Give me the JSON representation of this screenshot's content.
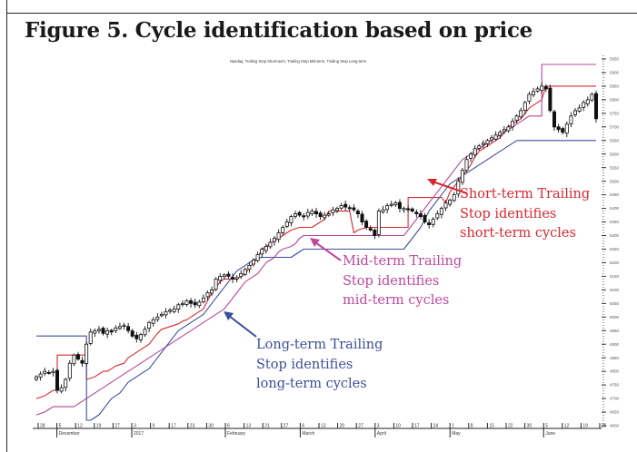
{
  "figure_title": "Figure 5. Cycle identification based on price",
  "chart_data": {
    "type": "line",
    "title": "Nasdaq, Trailing Stop Short-term, Trailing Stop Mid-term, Trailing Stop Long-term",
    "xlabel": "",
    "ylabel": "",
    "ylim": [
      4600,
      5950
    ],
    "yticks": [
      5950,
      5900,
      5850,
      5800,
      5750,
      5700,
      5650,
      5600,
      5550,
      5500,
      5450,
      5400,
      5350,
      5300,
      5250,
      5200,
      5150,
      5100,
      5050,
      5000,
      4950,
      4900,
      4850,
      4800,
      4750,
      4700,
      4650,
      4600
    ],
    "grid": false,
    "legend": "none",
    "x_ticks": [
      {
        "label": "28",
        "month": ""
      },
      {
        "label": "5",
        "month": "December"
      },
      {
        "label": "12",
        "month": ""
      },
      {
        "label": "19",
        "month": ""
      },
      {
        "label": "27",
        "month": ""
      },
      {
        "label": "3",
        "month": "2017"
      },
      {
        "label": "9",
        "month": ""
      },
      {
        "label": "17",
        "month": ""
      },
      {
        "label": "23",
        "month": ""
      },
      {
        "label": "30",
        "month": ""
      },
      {
        "label": "6",
        "month": "February"
      },
      {
        "label": "13",
        "month": ""
      },
      {
        "label": "21",
        "month": ""
      },
      {
        "label": "27",
        "month": ""
      },
      {
        "label": "6",
        "month": "March"
      },
      {
        "label": "13",
        "month": ""
      },
      {
        "label": "20",
        "month": ""
      },
      {
        "label": "27",
        "month": ""
      },
      {
        "label": "3",
        "month": "April"
      },
      {
        "label": "10",
        "month": ""
      },
      {
        "label": "17",
        "month": ""
      },
      {
        "label": "24",
        "month": ""
      },
      {
        "label": "1",
        "month": "May"
      },
      {
        "label": "8",
        "month": ""
      },
      {
        "label": "15",
        "month": ""
      },
      {
        "label": "22",
        "month": ""
      },
      {
        "label": "30",
        "month": ""
      },
      {
        "label": "5",
        "month": "June"
      },
      {
        "label": "12",
        "month": ""
      },
      {
        "label": "19",
        "month": ""
      },
      {
        "label": "26",
        "month": ""
      }
    ],
    "close_series": [
      4780,
      4790,
      4800,
      4795,
      4800,
      4730,
      4740,
      4770,
      4830,
      4860,
      4845,
      4830,
      4900,
      4945,
      4950,
      4955,
      4940,
      4950,
      4945,
      4960,
      4965,
      4970,
      4950,
      4930,
      4920,
      4935,
      4955,
      4980,
      4990,
      5000,
      5010,
      5020,
      5025,
      5030,
      5045,
      5050,
      5060,
      5050,
      5045,
      5055,
      5070,
      5090,
      5100,
      5140,
      5150,
      5155,
      5150,
      5140,
      5145,
      5160,
      5175,
      5190,
      5210,
      5230,
      5250,
      5260,
      5275,
      5290,
      5310,
      5330,
      5350,
      5370,
      5380,
      5375,
      5370,
      5385,
      5390,
      5380,
      5370,
      5375,
      5380,
      5395,
      5400,
      5410,
      5405,
      5400,
      5395,
      5380,
      5350,
      5330,
      5320,
      5300,
      5390,
      5395,
      5410,
      5415,
      5420,
      5400,
      5400,
      5395,
      5390,
      5380,
      5370,
      5350,
      5340,
      5360,
      5380,
      5400,
      5420,
      5430,
      5450,
      5500,
      5540,
      5580,
      5600,
      5620,
      5630,
      5640,
      5650,
      5660,
      5670,
      5680,
      5690,
      5700,
      5720,
      5740,
      5760,
      5790,
      5820,
      5830,
      5840,
      5850,
      5840,
      5760,
      5700,
      5690,
      5680,
      5710,
      5740,
      5760,
      5770,
      5790,
      5800,
      5820,
      5730
    ],
    "series": [
      {
        "name": "Trailing Stop Short-term",
        "color": "#d9282f",
        "values": [
          4700,
          4705,
          4710,
          4720,
          4730,
          4860,
          4860,
          4860,
          4860,
          4860,
          4860,
          4860,
          4770,
          4775,
          4780,
          4790,
          4800,
          4800,
          4810,
          4820,
          4825,
          4830,
          4850,
          4860,
          4870,
          4880,
          4890,
          4900,
          4920,
          4940,
          4955,
          4960,
          4965,
          4970,
          4975,
          4985,
          4990,
          5000,
          5010,
          5020,
          5030,
          5060,
          5090,
          5110,
          5130,
          5140,
          5140,
          5140,
          5140,
          5150,
          5160,
          5180,
          5200,
          5220,
          5250,
          5260,
          5270,
          5280,
          5290,
          5300,
          5310,
          5320,
          5325,
          5330,
          5330,
          5330,
          5330,
          5340,
          5350,
          5360,
          5390,
          5390,
          5390,
          5390,
          5390,
          5390,
          5310,
          5320,
          5325,
          5330,
          5330,
          5330,
          5330,
          5330,
          5330,
          5330,
          5330,
          5330,
          5330,
          5440,
          5440,
          5440,
          5440,
          5440,
          5440,
          5440,
          5440,
          5440,
          5420,
          5460,
          5480,
          5500,
          5520,
          5540,
          5560,
          5590,
          5610,
          5620,
          5630,
          5640,
          5650,
          5660,
          5680,
          5700,
          5710,
          5720,
          5730,
          5750,
          5770,
          5780,
          5790,
          5800,
          5850,
          5850,
          5850,
          5850,
          5850,
          5850,
          5850,
          5850,
          5850,
          5850,
          5850,
          5850,
          5850
        ]
      },
      {
        "name": "Trailing Stop Mid-term",
        "color": "#b4479b",
        "values": [
          4640,
          4645,
          4650,
          4660,
          4670,
          4670,
          4670,
          4670,
          4670,
          4670,
          4680,
          4690,
          4700,
          4710,
          4720,
          4730,
          4740,
          4750,
          4760,
          4770,
          4780,
          4790,
          4800,
          4810,
          4820,
          4830,
          4840,
          4850,
          4860,
          4870,
          4880,
          4890,
          4900,
          4910,
          4920,
          4930,
          4940,
          4950,
          4960,
          4970,
          4980,
          4990,
          5000,
          5010,
          5020,
          5030,
          5050,
          5070,
          5090,
          5110,
          5130,
          5140,
          5150,
          5160,
          5180,
          5200,
          5210,
          5220,
          5240,
          5250,
          5255,
          5260,
          5270,
          5290,
          5300,
          5300,
          5300,
          5300,
          5300,
          5300,
          5300,
          5300,
          5300,
          5300,
          5300,
          5300,
          5300,
          5300,
          5300,
          5300,
          5300,
          5300,
          5300,
          5300,
          5300,
          5300,
          5300,
          5300,
          5300,
          5320,
          5340,
          5360,
          5380,
          5400,
          5420,
          5440,
          5460,
          5480,
          5500,
          5520,
          5540,
          5560,
          5580,
          5590,
          5600,
          5610,
          5620,
          5630,
          5640,
          5650,
          5660,
          5670,
          5680,
          5690,
          5700,
          5710,
          5720,
          5730,
          5740,
          5740,
          5740,
          5930,
          5930,
          5930,
          5930,
          5930,
          5930,
          5930,
          5930,
          5930,
          5930,
          5930,
          5930,
          5930,
          5930
        ]
      },
      {
        "name": "Trailing Stop Long-term",
        "color": "#3b4f9a",
        "values": [
          4930,
          4930,
          4930,
          4930,
          4930,
          4930,
          4930,
          4930,
          4930,
          4930,
          4930,
          4930,
          4620,
          4620,
          4630,
          4640,
          4660,
          4680,
          4700,
          4710,
          4720,
          4740,
          4760,
          4770,
          4780,
          4790,
          4800,
          4810,
          4830,
          4850,
          4870,
          4890,
          4910,
          4930,
          4950,
          4960,
          4970,
          4980,
          4990,
          5000,
          5010,
          5030,
          5050,
          5070,
          5090,
          5110,
          5130,
          5150,
          5170,
          5180,
          5190,
          5200,
          5210,
          5215,
          5220,
          5220,
          5220,
          5220,
          5220,
          5220,
          5220,
          5220,
          5230,
          5240,
          5250,
          5250,
          5250,
          5250,
          5250,
          5250,
          5250,
          5250,
          5250,
          5250,
          5250,
          5250,
          5250,
          5250,
          5250,
          5250,
          5250,
          5250,
          5250,
          5250,
          5250,
          5250,
          5250,
          5250,
          5250,
          5270,
          5290,
          5310,
          5330,
          5360,
          5390,
          5410,
          5430,
          5450,
          5470,
          5490,
          5500,
          5510,
          5520,
          5530,
          5540,
          5550,
          5560,
          5570,
          5580,
          5590,
          5600,
          5610,
          5620,
          5630,
          5640,
          5650,
          5650,
          5650,
          5650,
          5650,
          5650,
          5650,
          5650,
          5650,
          5650,
          5650,
          5650,
          5650,
          5650,
          5650,
          5650,
          5650,
          5650,
          5650,
          5650
        ]
      }
    ],
    "annotations": [
      {
        "lines": [
          "Short-term Trailing",
          "Stop identifies",
          "short-term cycles"
        ],
        "color": "#d9282f"
      },
      {
        "lines": [
          "Mid-term Trailing",
          "Stop identifies",
          "mid-term cycles"
        ],
        "color": "#c0489f"
      },
      {
        "lines": [
          "Long-term Trailing",
          "Stop identifies",
          "long-term cycles"
        ],
        "color": "#3b4f9a"
      }
    ]
  }
}
